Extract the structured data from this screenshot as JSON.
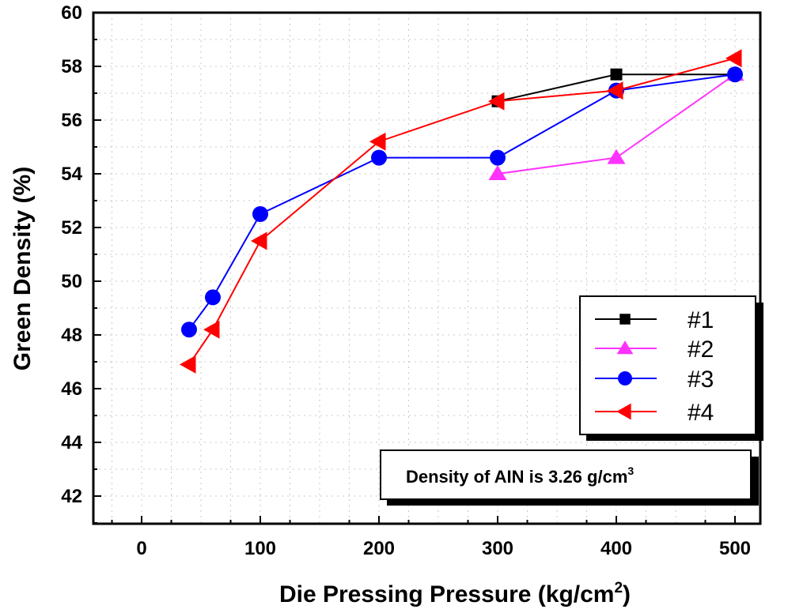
{
  "chart_data": {
    "type": "line",
    "title": "",
    "xlabel": "Die Pressing Pressure (kg/cm",
    "xlabel_sup": "2",
    "xlabel_close": ")",
    "ylabel": "Green Density (%)",
    "xlim": [
      -40,
      540
    ],
    "ylim": [
      41,
      60
    ],
    "xticks": [
      0,
      100,
      200,
      300,
      400,
      500
    ],
    "yticks": [
      42,
      44,
      46,
      48,
      50,
      52,
      54,
      56,
      58,
      60
    ],
    "grid": true,
    "legend_position": "bottom-right",
    "series": [
      {
        "name": "#1",
        "color": "#000000",
        "marker": "square",
        "x": [
          300,
          400,
          500
        ],
        "y": [
          56.7,
          57.7,
          57.7
        ]
      },
      {
        "name": "#2",
        "color": "#ff33ff",
        "marker": "triangle-up",
        "x": [
          300,
          400,
          500
        ],
        "y": [
          54.0,
          54.6,
          57.7
        ]
      },
      {
        "name": "#3",
        "color": "#0000ff",
        "marker": "circle",
        "x": [
          40,
          60,
          100,
          200,
          300,
          400,
          500
        ],
        "y": [
          48.2,
          49.4,
          52.5,
          54.6,
          54.6,
          57.1,
          57.7
        ]
      },
      {
        "name": "#4",
        "color": "#ff0000",
        "marker": "triangle-left",
        "x": [
          40,
          60,
          100,
          200,
          300,
          400,
          500
        ],
        "y": [
          46.9,
          48.2,
          51.5,
          55.2,
          56.7,
          57.1,
          58.3
        ]
      }
    ],
    "annotation": {
      "text": "Density of AIN is 3.26 g/cm",
      "sup": "3"
    }
  }
}
